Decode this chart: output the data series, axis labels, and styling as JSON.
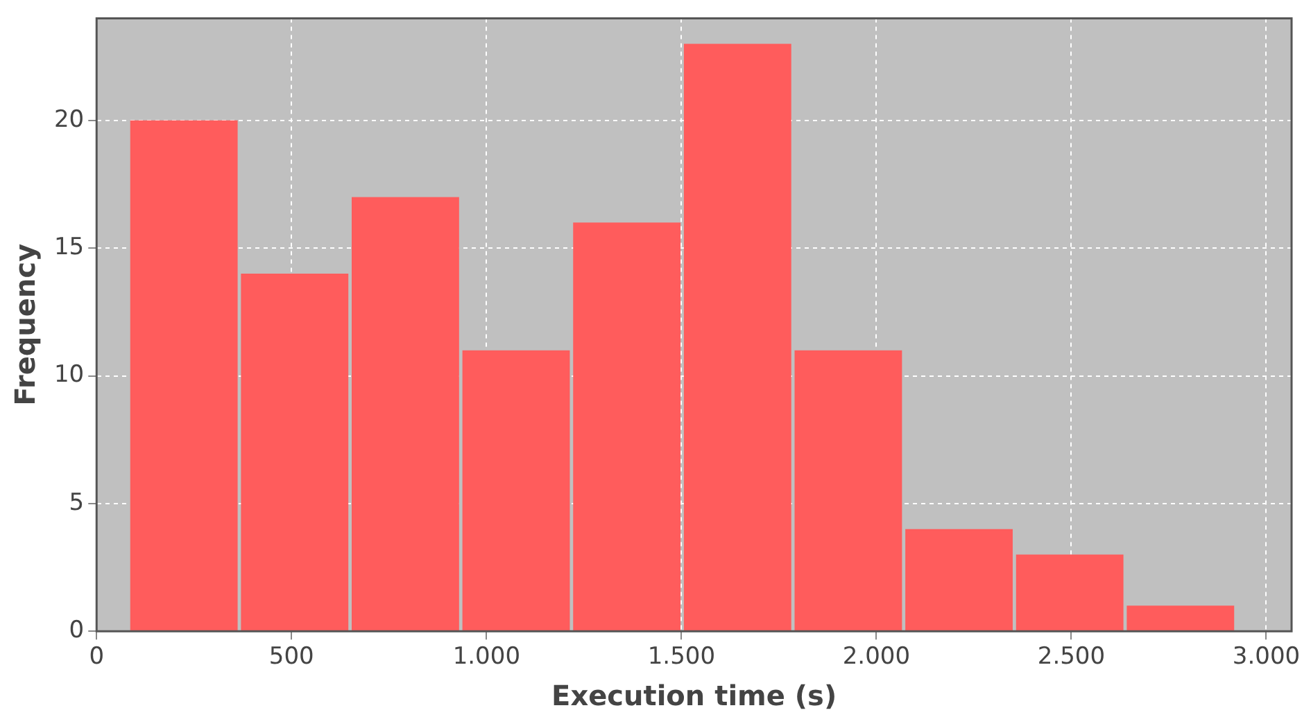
{
  "chart_data": {
    "type": "histogram",
    "xlabel": "Execution time (s)",
    "ylabel": "Frequency",
    "bins": [
      82,
      366,
      650,
      934,
      1218,
      1502,
      1786,
      2070,
      2354,
      2638,
      2922
    ],
    "values": [
      20,
      14,
      17,
      11,
      16,
      23,
      11,
      4,
      3,
      1
    ],
    "color": "#ff5c5c",
    "xlim": [
      0,
      3065
    ],
    "ylim": [
      0,
      24
    ],
    "xticks": [
      0,
      500,
      {
        "value": 1000,
        "label": "1.000"
      },
      {
        "value": 1500,
        "label": "1.500"
      },
      {
        "value": 2000,
        "label": "2.000"
      },
      {
        "value": 2500,
        "label": "2.500"
      },
      {
        "value": 3000,
        "label": "3.000"
      }
    ],
    "yticks": [
      0,
      5,
      10,
      15,
      20
    ],
    "grid": true
  }
}
